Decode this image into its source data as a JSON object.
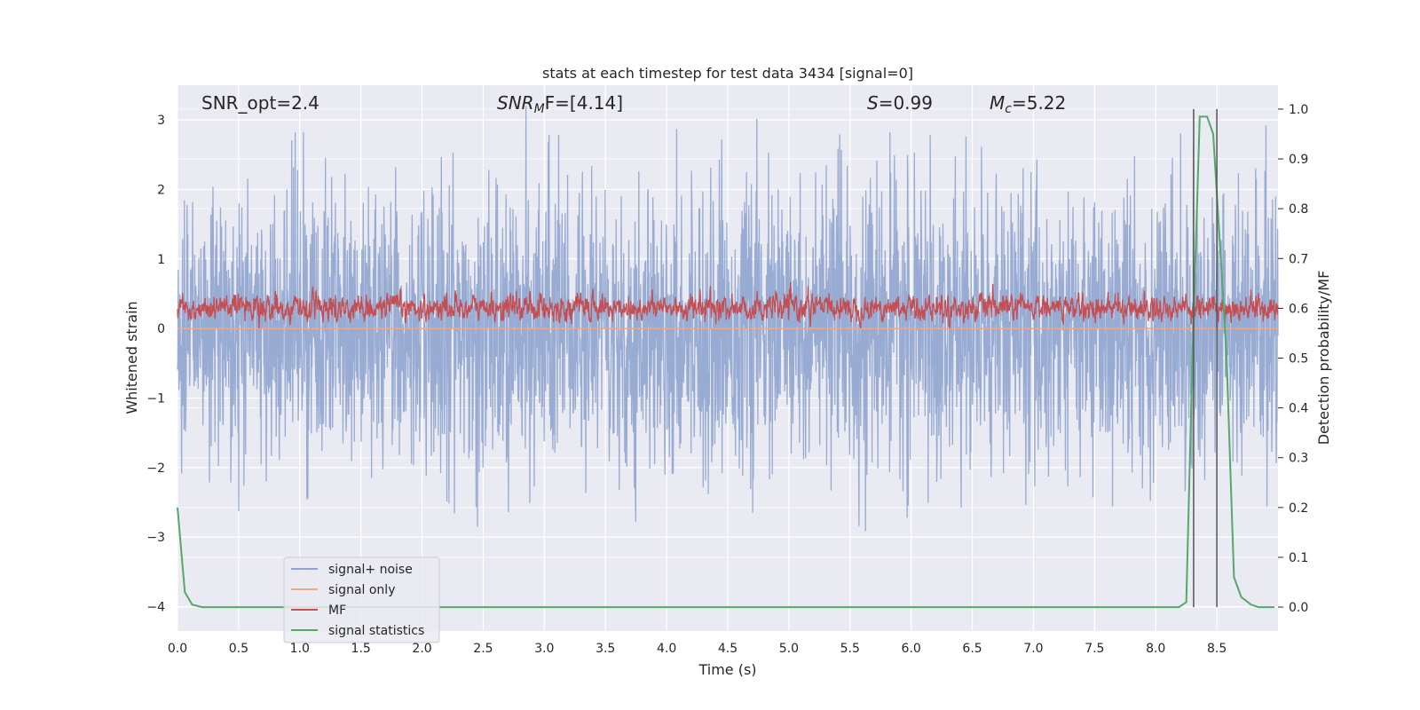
{
  "chart_data": {
    "type": "line",
    "title": "stats at each timestep for test data 3434 [signal=0]",
    "xlabel": "Time (s)",
    "ylabel": "Whitened strain",
    "y2label": "Detection probability/MF",
    "xlim": [
      0.0,
      9.0
    ],
    "ylim": [
      -4.35,
      3.5
    ],
    "y2lim": [
      -0.048,
      1.048
    ],
    "xticks": [
      0.0,
      0.5,
      1.0,
      1.5,
      2.0,
      2.5,
      3.0,
      3.5,
      4.0,
      4.5,
      5.0,
      5.5,
      6.0,
      6.5,
      7.0,
      7.5,
      8.0,
      8.5
    ],
    "yticks": [
      -4,
      -3,
      -2,
      -1,
      0,
      1,
      2,
      3
    ],
    "y2ticks": [
      0.0,
      0.1,
      0.2,
      0.3,
      0.4,
      0.5,
      0.6,
      0.7,
      0.8,
      0.9,
      1.0
    ],
    "grid": true,
    "legend_position": "lower-left",
    "annotations": {
      "snr_opt": "SNR_opt=2.4",
      "snr_mf_base": "SNR",
      "snr_mf_sub": "M",
      "snr_mf_rest": "F=[4.14]",
      "s_base": "S",
      "s_rest": "=0.99",
      "mc_base": "M",
      "mc_sub": "c",
      "mc_rest": "=5.22"
    },
    "vlines_x": [
      8.31,
      8.5
    ],
    "series": [
      {
        "name": "signal+ noise",
        "color": "#8fa4cf",
        "description_values": "whitened strain noise, approx range -3.6 to 3.2, centered near 0"
      },
      {
        "name": "signal only",
        "color": "#e8a98f",
        "values_constant": 0.0
      },
      {
        "name": "MF",
        "color": "#c44e52",
        "description_values": "matched-filter output approx 0.0 to 1.0, mean near 0.3"
      },
      {
        "name": "signal statistics",
        "color": "#55a868",
        "x": [
          0.0,
          0.06,
          0.12,
          0.2,
          0.3,
          1.0,
          2.0,
          3.0,
          4.0,
          5.0,
          6.0,
          7.0,
          8.0,
          8.19,
          8.25,
          8.3,
          8.36,
          8.42,
          8.47,
          8.52,
          8.58,
          8.64,
          8.7,
          8.78,
          8.84,
          8.92,
          8.97
        ],
        "y2": [
          0.2,
          0.03,
          0.005,
          0.0,
          0.0,
          0.0,
          0.0,
          0.0,
          0.0,
          0.0,
          0.0,
          0.0,
          0.0,
          0.0,
          0.01,
          0.5,
          0.985,
          0.985,
          0.95,
          0.75,
          0.5,
          0.06,
          0.02,
          0.005,
          0.0,
          0.0,
          0.0
        ]
      }
    ]
  },
  "colors": {
    "plot_bg": "#eaeaf2",
    "grid": "#ffffff",
    "vline": "#555555"
  }
}
